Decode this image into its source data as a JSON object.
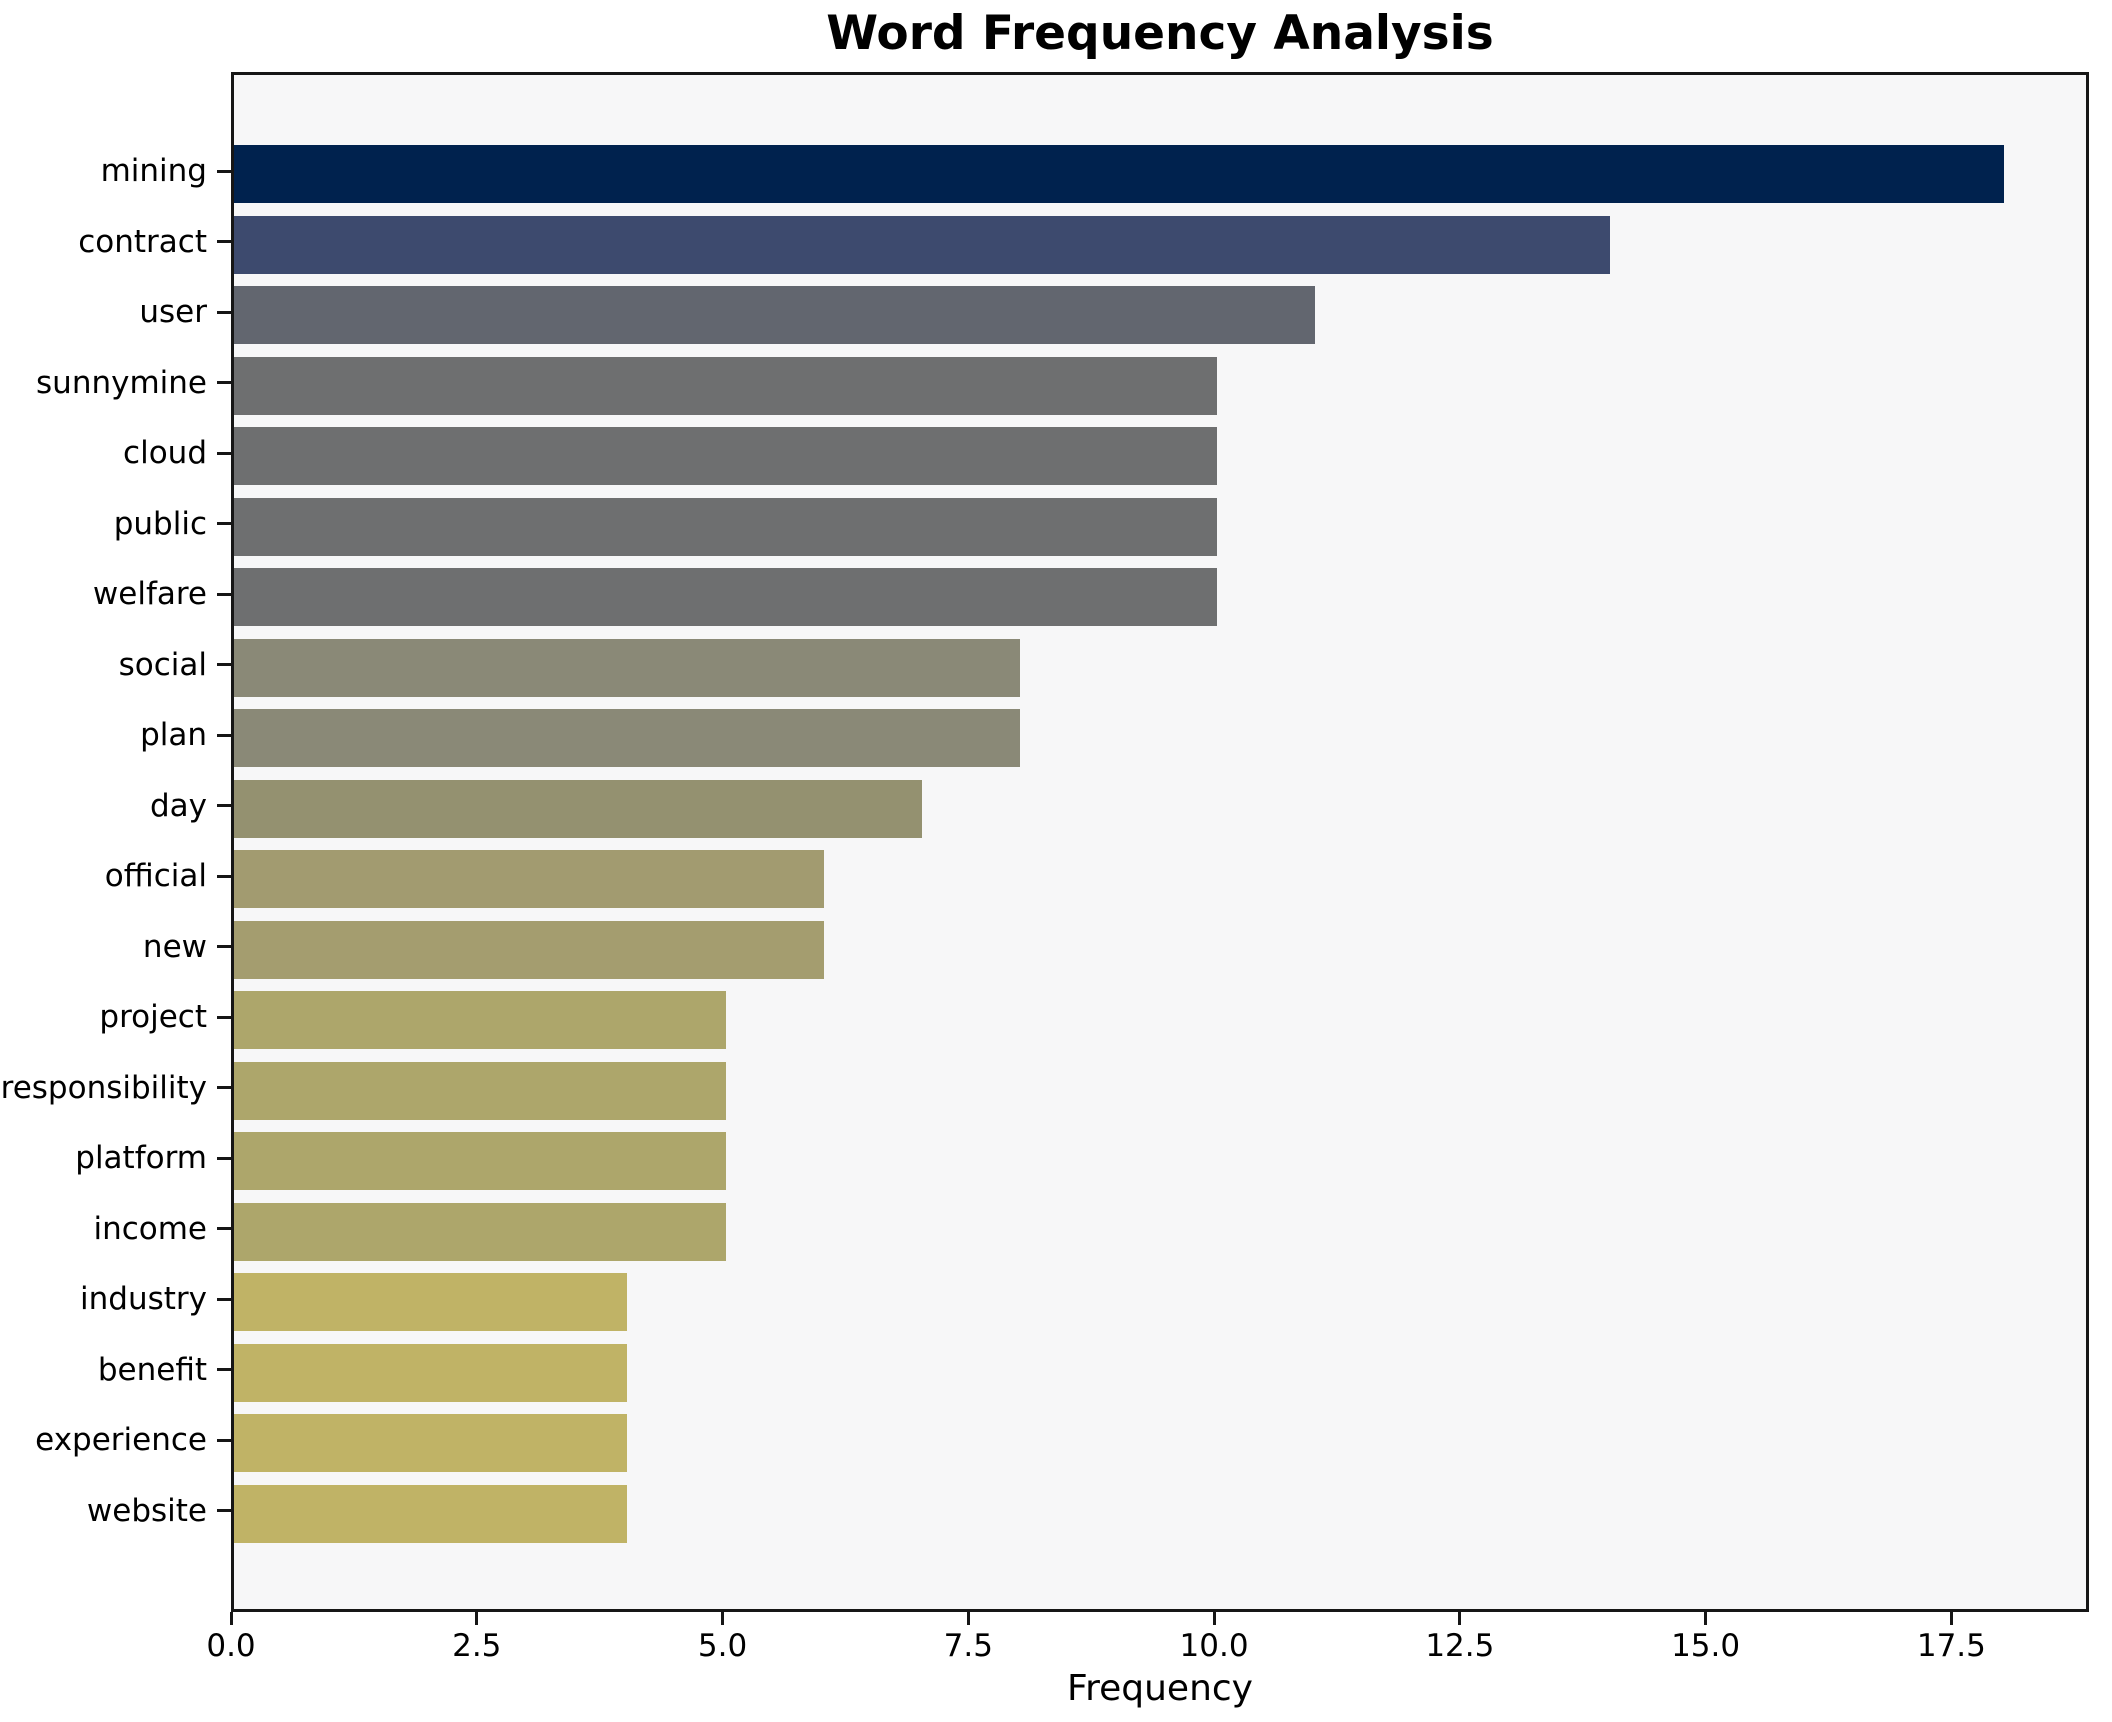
{
  "chart_data": {
    "type": "bar",
    "orientation": "horizontal",
    "title": "Word Frequency Analysis",
    "xlabel": "Frequency",
    "ylabel": "",
    "grid": false,
    "legend": false,
    "xlim": [
      0,
      18.9
    ],
    "xticks": [
      0.0,
      2.5,
      5.0,
      7.5,
      10.0,
      12.5,
      15.0,
      17.5
    ],
    "xtick_labels": [
      "0.0",
      "2.5",
      "5.0",
      "7.5",
      "10.0",
      "12.5",
      "15.0",
      "17.5"
    ],
    "categories": [
      "mining",
      "contract",
      "user",
      "sunnymine",
      "cloud",
      "public",
      "welfare",
      "social",
      "plan",
      "day",
      "official",
      "new",
      "project",
      "responsibility",
      "platform",
      "income",
      "industry",
      "benefit",
      "experience",
      "website"
    ],
    "values": [
      18,
      14,
      11,
      10,
      10,
      10,
      10,
      8,
      8,
      7,
      6,
      6,
      5,
      5,
      5,
      5,
      4,
      4,
      4,
      4
    ],
    "bar_colors": [
      "#00224e",
      "#3d4a6e",
      "#62666f",
      "#6e6f70",
      "#6e6f70",
      "#6e6f70",
      "#6e6f70",
      "#8a8977",
      "#8a8977",
      "#949170",
      "#a29b70",
      "#a49d6f",
      "#ada66b",
      "#ada66b",
      "#ada66b",
      "#ada66b",
      "#c0b366",
      "#c0b366",
      "#c0b366",
      "#c0b366"
    ],
    "colormap_note": "cividis, darkest = highest frequency",
    "plot_background": "#f7f7f8",
    "figure_background": "#ffffff",
    "spine_color": "#161616"
  }
}
